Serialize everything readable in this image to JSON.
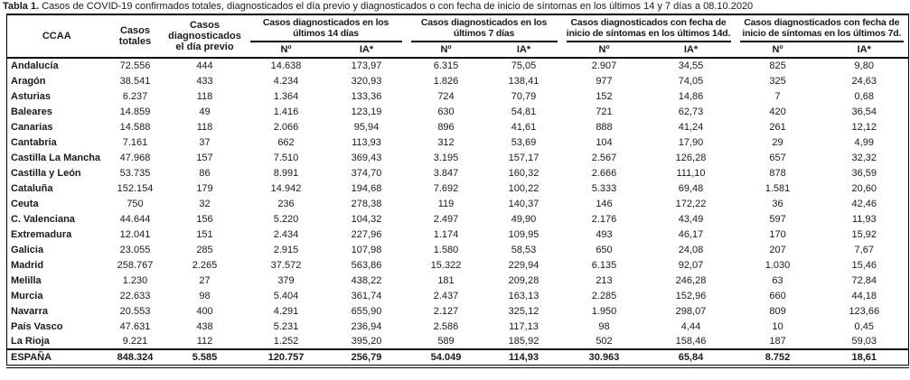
{
  "title": {
    "label": "Tabla 1.",
    "rest": " Casos de COVID-19 confirmados totales, diagnosticados el día previo y diagnosticados o con fecha de inicio de síntomas en los últimos 14 y 7 días a 08.10.2020"
  },
  "table": {
    "headers": {
      "ccaa": "CCAA",
      "casos_totales": "Casos totales",
      "dia_previo": "Casos diagnosticados el día previo",
      "groups": [
        {
          "line1": "Casos diagnosticados en los",
          "line2": "últimos 14 días"
        },
        {
          "line1": "Casos diagnosticados en los",
          "line2": "últimos 7 días"
        },
        {
          "line1": "Casos diagnosticados con fecha de",
          "line2": "inicio de síntomas en los últimos 14d."
        },
        {
          "line1": "Casos diagnosticados con fecha de",
          "line2": "inicio de síntomas en los últimos 7d."
        }
      ],
      "sub_n": "Nº",
      "sub_ia": "IA*"
    },
    "rows": [
      [
        "Andalucía",
        "72.556",
        "444",
        "14.638",
        "173,97",
        "6.315",
        "75,05",
        "2.907",
        "34,55",
        "825",
        "9,80"
      ],
      [
        "Aragón",
        "38.541",
        "433",
        "4.234",
        "320,93",
        "1.826",
        "138,41",
        "977",
        "74,05",
        "325",
        "24,63"
      ],
      [
        "Asturias",
        "6.237",
        "118",
        "1.364",
        "133,36",
        "724",
        "70,79",
        "152",
        "14,86",
        "7",
        "0,68"
      ],
      [
        "Baleares",
        "14.859",
        "49",
        "1.416",
        "123,19",
        "630",
        "54,81",
        "721",
        "62,73",
        "420",
        "36,54"
      ],
      [
        "Canarias",
        "14.588",
        "118",
        "2.066",
        "95,94",
        "896",
        "41,61",
        "888",
        "41,24",
        "261",
        "12,12"
      ],
      [
        "Cantabria",
        "7.161",
        "37",
        "662",
        "113,93",
        "312",
        "53,69",
        "104",
        "17,90",
        "29",
        "4,99"
      ],
      [
        "Castilla La Mancha",
        "47.968",
        "157",
        "7.510",
        "369,43",
        "3.195",
        "157,17",
        "2.567",
        "126,28",
        "657",
        "32,32"
      ],
      [
        "Castilla y León",
        "53.735",
        "86",
        "8.991",
        "374,70",
        "3.847",
        "160,32",
        "2.666",
        "111,10",
        "878",
        "36,59"
      ],
      [
        "Cataluña",
        "152.154",
        "179",
        "14.942",
        "194,68",
        "7.692",
        "100,22",
        "5.333",
        "69,48",
        "1.581",
        "20,60"
      ],
      [
        "Ceuta",
        "750",
        "32",
        "236",
        "278,38",
        "119",
        "140,37",
        "146",
        "172,22",
        "36",
        "42,46"
      ],
      [
        "C. Valenciana",
        "44.644",
        "156",
        "5.220",
        "104,32",
        "2.497",
        "49,90",
        "2.176",
        "43,49",
        "597",
        "11,93"
      ],
      [
        "Extremadura",
        "12.041",
        "151",
        "2.434",
        "227,96",
        "1.174",
        "109,95",
        "493",
        "46,17",
        "170",
        "15,92"
      ],
      [
        "Galicia",
        "23.055",
        "285",
        "2.915",
        "107,98",
        "1.580",
        "58,53",
        "650",
        "24,08",
        "207",
        "7,67"
      ],
      [
        "Madrid",
        "258.767",
        "2.265",
        "37.572",
        "563,86",
        "15.322",
        "229,94",
        "6.135",
        "92,07",
        "1.030",
        "15,46"
      ],
      [
        "Melilla",
        "1.230",
        "27",
        "379",
        "438,22",
        "181",
        "209,28",
        "213",
        "246,28",
        "63",
        "72,84"
      ],
      [
        "Murcia",
        "22.633",
        "98",
        "5.404",
        "361,74",
        "2.437",
        "163,13",
        "2.285",
        "152,96",
        "660",
        "44,18"
      ],
      [
        "Navarra",
        "20.553",
        "400",
        "4.291",
        "655,90",
        "2.127",
        "325,12",
        "1.950",
        "298,07",
        "809",
        "123,66"
      ],
      [
        "País Vasco",
        "47.631",
        "438",
        "5.231",
        "236,94",
        "2.586",
        "117,13",
        "98",
        "4,44",
        "10",
        "0,45"
      ],
      [
        "La Rioja",
        "9.221",
        "112",
        "1.252",
        "395,20",
        "589",
        "185,92",
        "502",
        "158,46",
        "187",
        "59,03"
      ]
    ],
    "total_row": [
      "ESPAÑA",
      "848.324",
      "5.585",
      "120.757",
      "256,79",
      "54.049",
      "114,93",
      "30.963",
      "65,84",
      "8.752",
      "18,61"
    ]
  }
}
